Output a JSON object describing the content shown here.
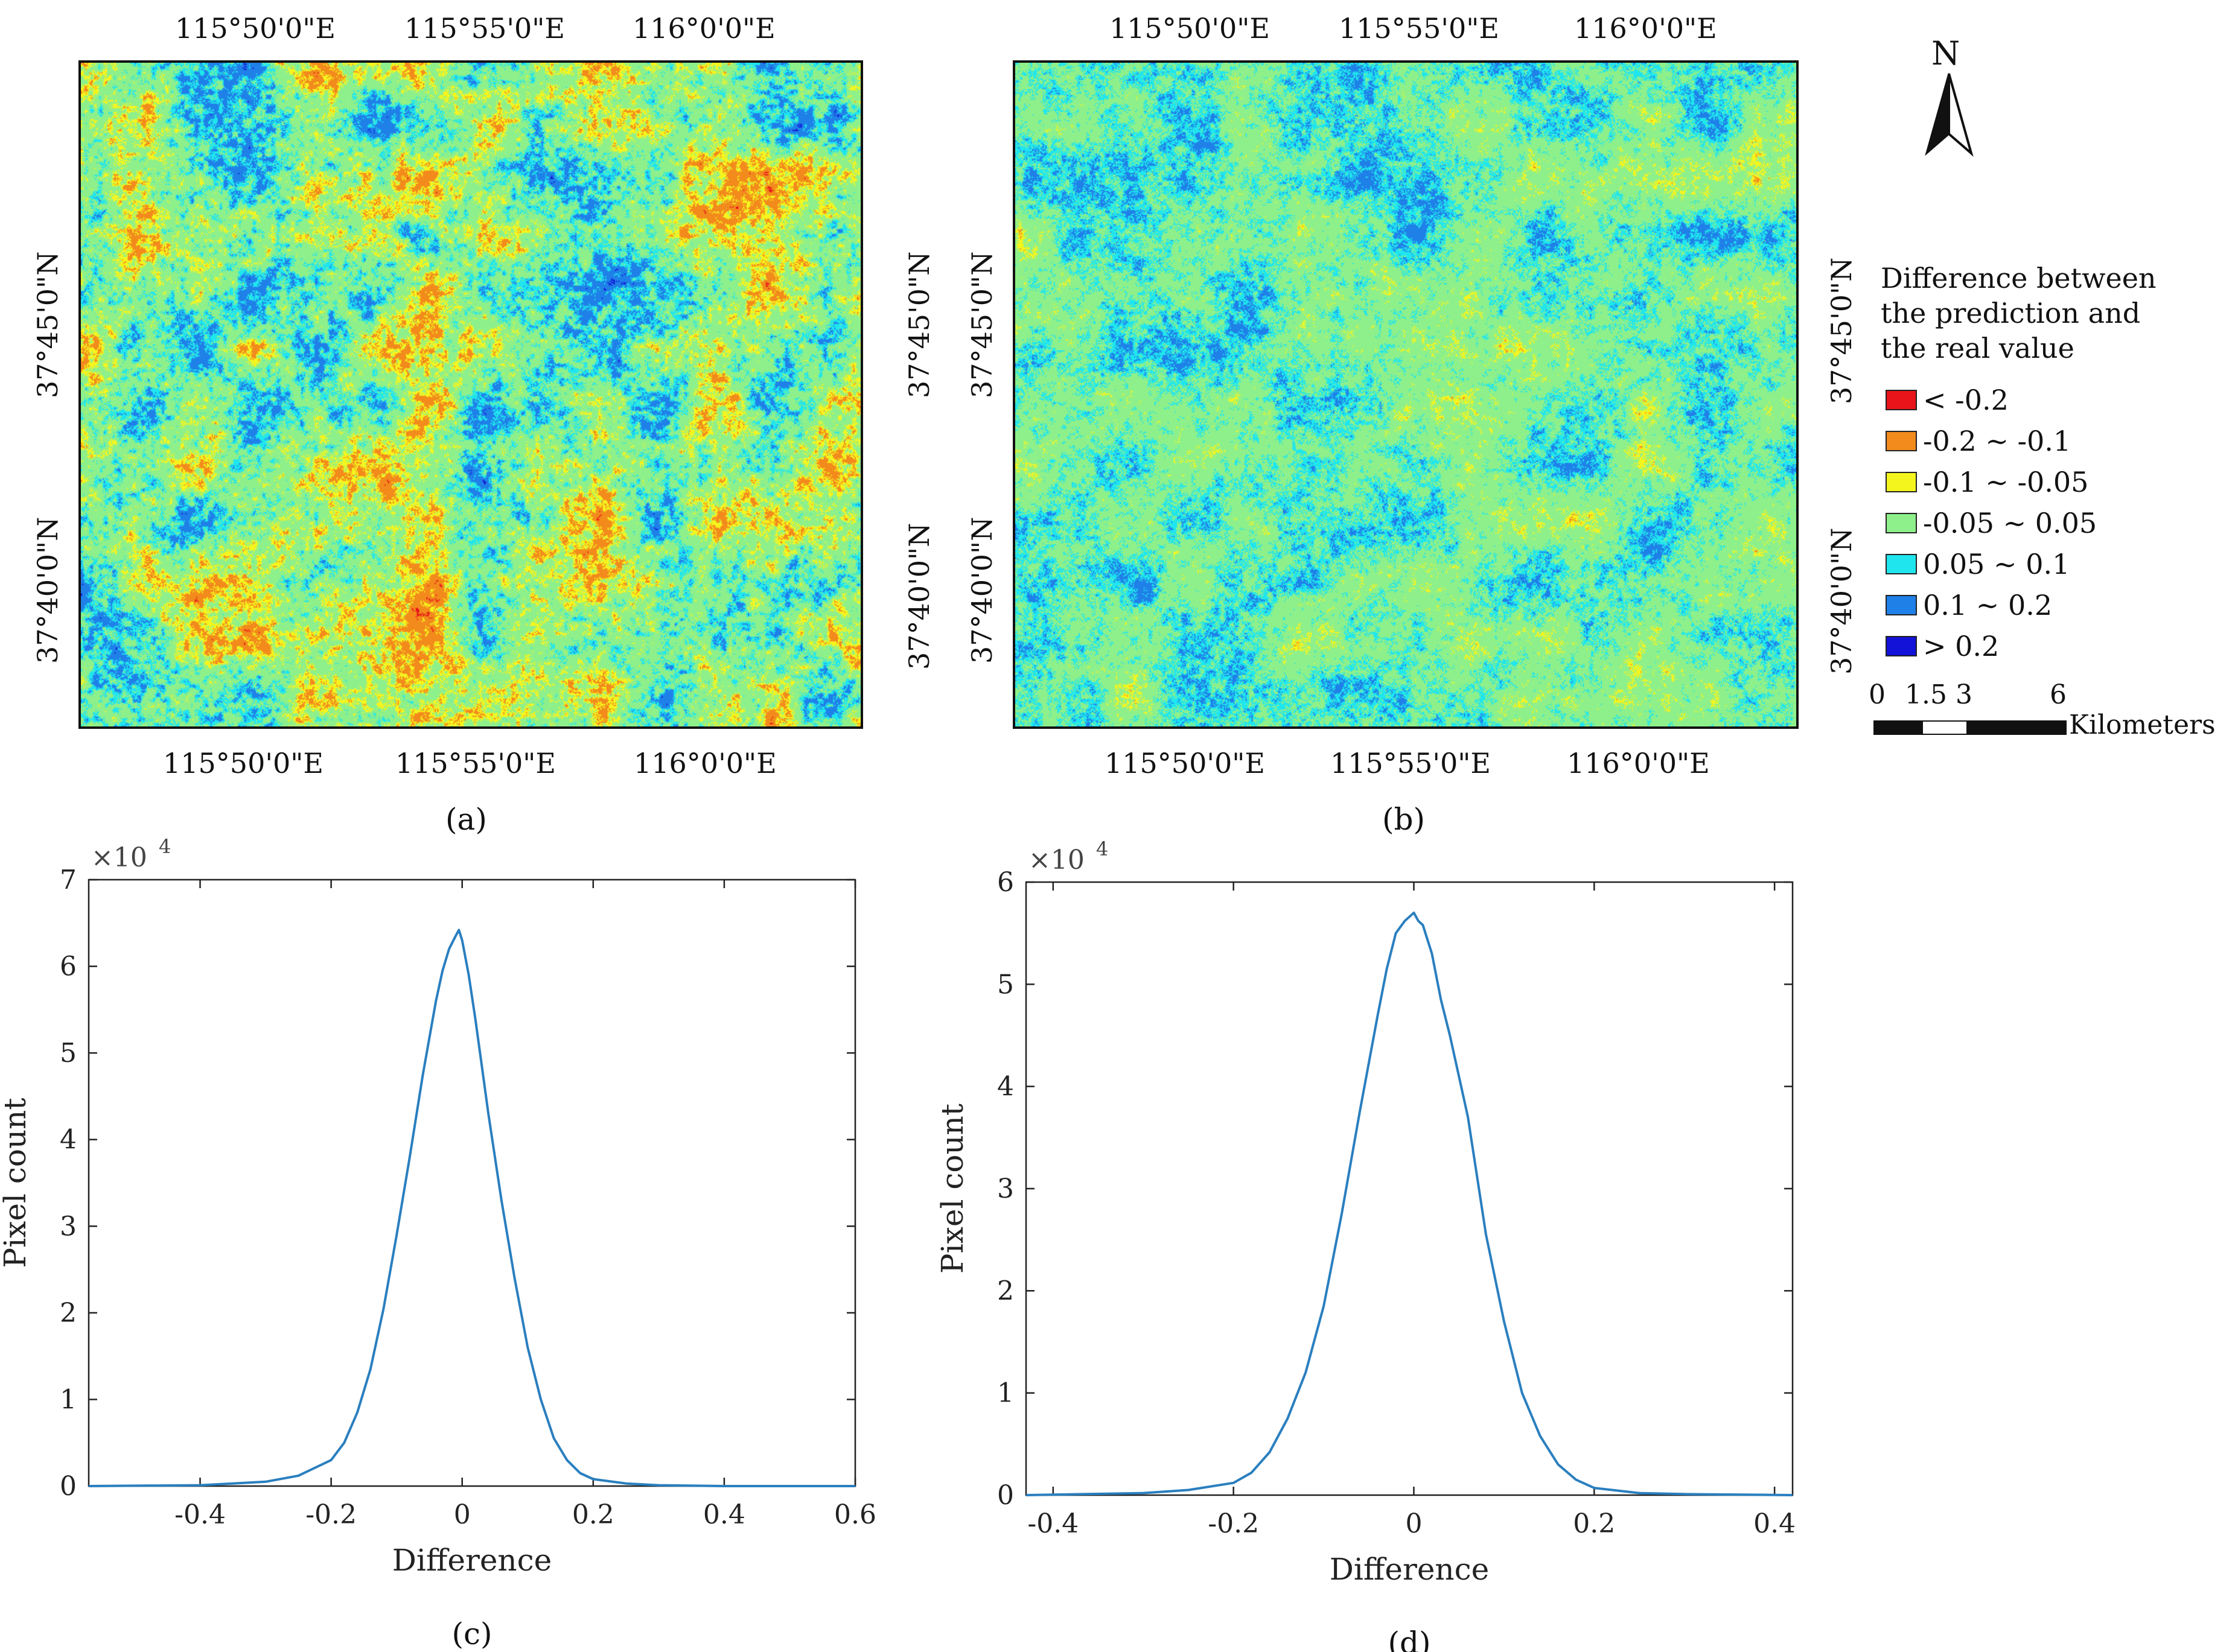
{
  "maps": {
    "a": {
      "caption": "(a)",
      "top_ticks": [
        "115°50'0\"E",
        "115°55'0\"E",
        "116°0'0\"E"
      ],
      "bottom_ticks": [
        "115°50'0\"E",
        "115°55'0\"E",
        "116°0'0\"E"
      ],
      "left_ticks": [
        "37°45'0\"N",
        "37°40'0\"N"
      ],
      "right_ticks": [
        "37°45'0\"N",
        "37°40'0\"N"
      ]
    },
    "b": {
      "caption": "(b)",
      "top_ticks": [
        "115°50'0\"E",
        "115°55'0\"E",
        "116°0'0\"E"
      ],
      "bottom_ticks": [
        "115°50'0\"E",
        "115°55'0\"E",
        "116°0'0\"E"
      ],
      "left_ticks": [
        "37°45'0\"N",
        "37°40'0\"N"
      ],
      "right_ticks": [
        "37°45'0\"N",
        "37°40'0\"N"
      ]
    }
  },
  "north_arrow": {
    "label": "N"
  },
  "legend": {
    "title_lines": [
      "Difference between",
      "the prediction and",
      "the real value"
    ],
    "classes": [
      {
        "label": "< -0.2",
        "color": "#e8141a"
      },
      {
        "label": "-0.2 ~ -0.1",
        "color": "#f28a1c"
      },
      {
        "label": "-0.1 ~ -0.05",
        "color": "#f5f51e"
      },
      {
        "label": "-0.05 ~ 0.05",
        "color": "#8ef08a"
      },
      {
        "label": "0.05 ~ 0.1",
        "color": "#1fe6ee"
      },
      {
        "label": "0.1 ~ 0.2",
        "color": "#1f80e8"
      },
      {
        "label": "> 0.2",
        "color": "#1212d8"
      }
    ]
  },
  "scale_bar": {
    "ticks": [
      "0",
      "1.5",
      "3",
      "6"
    ],
    "unit": "Kilometers"
  },
  "chart_data": [
    {
      "type": "line",
      "caption": "(c)",
      "title": "",
      "xlabel": "Difference",
      "ylabel": "Pixel count",
      "exponent_label": "×10",
      "exponent_power": "4",
      "xlim": [
        -0.57,
        0.6
      ],
      "ylim": [
        0,
        7
      ],
      "xticks": [
        -0.4,
        -0.2,
        0,
        0.2,
        0.4,
        0.6
      ],
      "xtick_labels": [
        "-0.4",
        "-0.2",
        "0",
        "0.2",
        "0.4",
        "0.6"
      ],
      "yticks": [
        0,
        1,
        2,
        3,
        4,
        5,
        6,
        7
      ],
      "ytick_labels": [
        "0",
        "1",
        "2",
        "3",
        "4",
        "5",
        "6",
        "7"
      ],
      "line_color": "#2a7fbf",
      "series": [
        {
          "name": "Pixel count",
          "x": [
            -0.57,
            -0.4,
            -0.3,
            -0.25,
            -0.2,
            -0.18,
            -0.16,
            -0.14,
            -0.12,
            -0.1,
            -0.08,
            -0.06,
            -0.04,
            -0.03,
            -0.02,
            -0.01,
            -0.005,
            0,
            0.01,
            0.02,
            0.03,
            0.04,
            0.06,
            0.08,
            0.1,
            0.12,
            0.14,
            0.16,
            0.18,
            0.2,
            0.25,
            0.3,
            0.4,
            0.6
          ],
          "y": [
            0,
            0.01,
            0.05,
            0.12,
            0.3,
            0.5,
            0.85,
            1.35,
            2.05,
            2.9,
            3.8,
            4.75,
            5.6,
            5.95,
            6.2,
            6.35,
            6.42,
            6.3,
            5.9,
            5.4,
            4.85,
            4.3,
            3.3,
            2.4,
            1.6,
            1.0,
            0.55,
            0.3,
            0.15,
            0.08,
            0.03,
            0.01,
            0,
            0
          ]
        }
      ]
    },
    {
      "type": "line",
      "caption": "(d)",
      "title": "",
      "xlabel": "Difference",
      "ylabel": "Pixel count",
      "exponent_label": "×10",
      "exponent_power": "4",
      "xlim": [
        -0.43,
        0.42
      ],
      "ylim": [
        0,
        6
      ],
      "xticks": [
        -0.4,
        -0.2,
        0,
        0.2,
        0.4
      ],
      "xtick_labels": [
        "-0.4",
        "-0.2",
        "0",
        "0.2",
        "0.4"
      ],
      "yticks": [
        0,
        1,
        2,
        3,
        4,
        5,
        6
      ],
      "ytick_labels": [
        "0",
        "1",
        "2",
        "3",
        "4",
        "5",
        "6"
      ],
      "line_color": "#2a7fbf",
      "series": [
        {
          "name": "Pixel count",
          "x": [
            -0.43,
            -0.3,
            -0.25,
            -0.2,
            -0.18,
            -0.16,
            -0.14,
            -0.12,
            -0.1,
            -0.08,
            -0.06,
            -0.04,
            -0.03,
            -0.02,
            -0.01,
            0,
            0.005,
            0.01,
            0.02,
            0.03,
            0.04,
            0.06,
            0.08,
            0.1,
            0.12,
            0.14,
            0.16,
            0.18,
            0.2,
            0.25,
            0.3,
            0.42
          ],
          "y": [
            0,
            0.02,
            0.05,
            0.12,
            0.22,
            0.42,
            0.75,
            1.2,
            1.85,
            2.75,
            3.75,
            4.7,
            5.15,
            5.5,
            5.62,
            5.7,
            5.62,
            5.58,
            5.3,
            4.85,
            4.5,
            3.7,
            2.55,
            1.7,
            1.0,
            0.58,
            0.3,
            0.15,
            0.07,
            0.02,
            0.01,
            0
          ]
        }
      ]
    }
  ]
}
